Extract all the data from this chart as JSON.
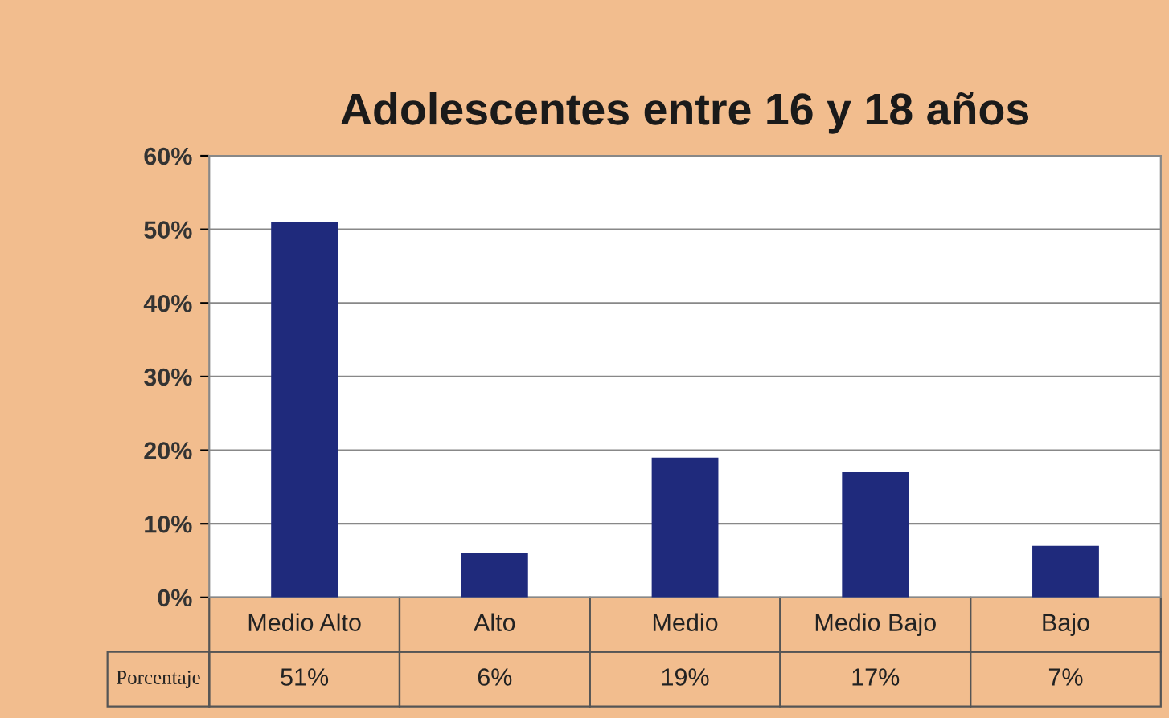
{
  "chart_data": {
    "type": "bar",
    "title": "Adolescentes entre 16 y 18 años",
    "categories": [
      "Medio Alto",
      "Alto",
      "Medio",
      "Medio Bajo",
      "Bajo"
    ],
    "series": [
      {
        "name": "Porcentaje",
        "color": "#1f2a7c",
        "values": [
          51,
          6,
          19,
          17,
          7
        ],
        "value_labels": [
          "51%",
          "6%",
          "19%",
          "17%",
          "7%"
        ]
      }
    ],
    "ylim": [
      0,
      60
    ],
    "yticks": [
      {
        "value": 0,
        "label": "0%"
      },
      {
        "value": 10,
        "label": "10%"
      },
      {
        "value": 20,
        "label": "20%"
      },
      {
        "value": 30,
        "label": "30%"
      },
      {
        "value": 40,
        "label": "40%"
      },
      {
        "value": 50,
        "label": "50%"
      },
      {
        "value": 60,
        "label": "60%"
      }
    ],
    "grid": "y",
    "legend": false
  }
}
